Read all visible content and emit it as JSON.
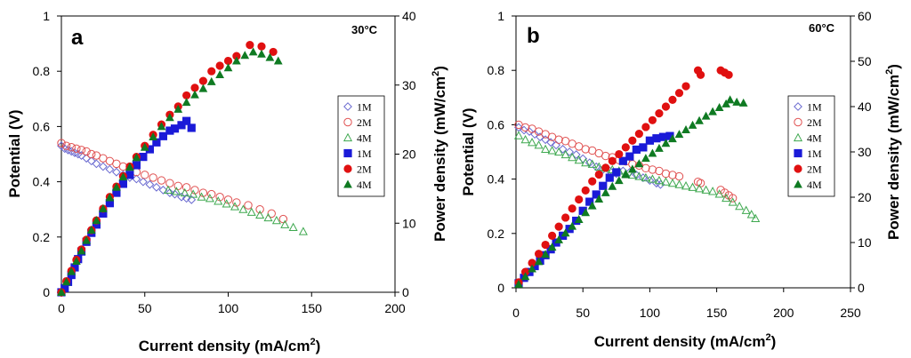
{
  "chart_data": [
    {
      "type": "scatter",
      "panel_label": "a",
      "annotation": "30°C",
      "xlabel": "Current density (mA/cm",
      "xlabel_sup": "2",
      "xlabel_end": ")",
      "ylabel": "Potential (V)",
      "y2label": "Power density (mW/cm",
      "y2label_sup": "2",
      "y2label_end": ")",
      "xlim": [
        0,
        200
      ],
      "ylim": [
        0,
        1
      ],
      "y2lim": [
        0,
        40
      ],
      "xticks": [
        "0",
        "50",
        "100",
        "150",
        "200"
      ],
      "yticks": [
        "0",
        "0.2",
        "0.4",
        "0.6",
        "0.8",
        "1"
      ],
      "y2ticks": [
        "0",
        "10",
        "20",
        "30",
        "40"
      ],
      "legend_position": "center-right",
      "series": [
        {
          "name": "1M",
          "axis": "left",
          "marker": "diamond-open",
          "color": "#6a6ad0",
          "x": [
            0,
            2,
            4,
            6,
            8,
            10,
            12,
            15,
            18,
            21,
            25,
            29,
            33,
            37,
            41,
            45,
            49,
            53,
            57,
            61,
            65,
            68,
            72,
            75,
            78
          ],
          "y": [
            0.53,
            0.52,
            0.515,
            0.51,
            0.505,
            0.5,
            0.495,
            0.485,
            0.475,
            0.465,
            0.455,
            0.445,
            0.435,
            0.425,
            0.415,
            0.41,
            0.4,
            0.39,
            0.38,
            0.37,
            0.36,
            0.355,
            0.345,
            0.34,
            0.335
          ]
        },
        {
          "name": "2M",
          "axis": "left",
          "marker": "circle-open",
          "color": "#e05050",
          "x": [
            0,
            3,
            6,
            9,
            12,
            15,
            18,
            21,
            25,
            29,
            33,
            37,
            41,
            45,
            50,
            55,
            60,
            65,
            70,
            75,
            80,
            85,
            90,
            95,
            100,
            105,
            112,
            119,
            126,
            133
          ],
          "y": [
            0.54,
            0.53,
            0.525,
            0.52,
            0.515,
            0.51,
            0.5,
            0.495,
            0.485,
            0.475,
            0.465,
            0.455,
            0.445,
            0.435,
            0.425,
            0.415,
            0.405,
            0.395,
            0.385,
            0.38,
            0.37,
            0.36,
            0.355,
            0.345,
            0.335,
            0.325,
            0.315,
            0.3,
            0.285,
            0.265
          ]
        },
        {
          "name": "4M",
          "axis": "left",
          "marker": "triangle-open",
          "color": "#3ea84f",
          "x": [
            64,
            69,
            74,
            79,
            84,
            89,
            94,
            99,
            104,
            109,
            114,
            119,
            124,
            129,
            134,
            139,
            145
          ],
          "y": [
            0.37,
            0.365,
            0.36,
            0.355,
            0.345,
            0.34,
            0.33,
            0.32,
            0.31,
            0.3,
            0.29,
            0.28,
            0.27,
            0.26,
            0.245,
            0.235,
            0.22
          ]
        },
        {
          "name": "1M",
          "axis": "right",
          "marker": "square-filled",
          "color": "#1a1ad8",
          "x": [
            0,
            2,
            4,
            6,
            8,
            10,
            12,
            15,
            18,
            21,
            25,
            29,
            33,
            37,
            41,
            45,
            49,
            53,
            57,
            61,
            65,
            68,
            72,
            75,
            78
          ],
          "y": [
            0,
            0.6,
            1.5,
            2.5,
            3.6,
            4.8,
            5.9,
            7.3,
            8.6,
            9.8,
            11.4,
            12.9,
            14.4,
            15.7,
            17.0,
            18.4,
            19.6,
            20.7,
            21.7,
            22.6,
            23.4,
            23.7,
            24.2,
            24.8,
            23.8
          ]
        },
        {
          "name": "2M",
          "axis": "right",
          "marker": "circle-filled",
          "color": "#e01010",
          "x": [
            0,
            3,
            6,
            9,
            12,
            15,
            18,
            21,
            25,
            29,
            33,
            37,
            41,
            45,
            50,
            55,
            60,
            65,
            70,
            75,
            80,
            85,
            90,
            95,
            100,
            105,
            113,
            120,
            127
          ],
          "y": [
            0,
            1.6,
            3.1,
            4.7,
            6.2,
            7.6,
            9.0,
            10.4,
            12.1,
            13.8,
            15.3,
            16.8,
            18.2,
            19.6,
            21.2,
            22.8,
            24.3,
            25.7,
            26.9,
            28.5,
            29.6,
            30.6,
            32.0,
            32.8,
            33.5,
            34.2,
            35.8,
            35.6,
            34.8
          ]
        },
        {
          "name": "4M",
          "axis": "right",
          "marker": "triangle-filled",
          "color": "#0f7a22",
          "x": [
            0,
            3,
            6,
            9,
            12,
            15,
            18,
            21,
            25,
            29,
            33,
            37,
            41,
            45,
            50,
            55,
            60,
            65,
            70,
            75,
            80,
            85,
            90,
            95,
            100,
            105,
            110,
            115,
            120,
            125,
            130
          ],
          "y": [
            0,
            1.5,
            3.0,
            4.5,
            6.0,
            7.5,
            9.0,
            10.4,
            12.1,
            13.7,
            15.2,
            16.7,
            18.1,
            19.5,
            21.0,
            22.5,
            24.0,
            25.3,
            26.5,
            27.5,
            28.6,
            29.5,
            30.5,
            31.5,
            32.5,
            33.5,
            34.3,
            34.8,
            34.5,
            34.0,
            33.5
          ]
        }
      ]
    },
    {
      "type": "scatter",
      "panel_label": "b",
      "annotation": "60°C",
      "xlabel": "Current density (mA/cm",
      "xlabel_sup": "2",
      "xlabel_end": ")",
      "ylabel": "Potential (V)",
      "y2label": "Power density (mW/cm",
      "y2label_sup": "2",
      "y2label_end": ")",
      "xlim": [
        0,
        250
      ],
      "ylim": [
        0,
        1
      ],
      "y2lim": [
        0,
        60
      ],
      "xticks": [
        "0",
        "50",
        "100",
        "150",
        "200",
        "250"
      ],
      "yticks": [
        "0",
        "0.2",
        "0.4",
        "0.6",
        "0.8",
        "1"
      ],
      "y2ticks": [
        "0",
        "10",
        "20",
        "30",
        "40",
        "50",
        "60"
      ],
      "legend_position": "center-right",
      "series": [
        {
          "name": "1M",
          "axis": "left",
          "marker": "diamond-open",
          "color": "#6a6ad0",
          "x": [
            2,
            6,
            10,
            14,
            18,
            22,
            26,
            30,
            35,
            40,
            45,
            50,
            55,
            60,
            65,
            70,
            75,
            80,
            85,
            90,
            95,
            100,
            105,
            108
          ],
          "y": [
            0.59,
            0.58,
            0.575,
            0.565,
            0.555,
            0.545,
            0.535,
            0.525,
            0.51,
            0.5,
            0.49,
            0.475,
            0.46,
            0.445,
            0.435,
            0.43,
            0.42,
            0.43,
            0.425,
            0.415,
            0.405,
            0.395,
            0.385,
            0.38
          ]
        },
        {
          "name": "2M",
          "axis": "left",
          "marker": "circle-open",
          "color": "#e05050",
          "x": [
            2,
            7,
            12,
            17,
            22,
            27,
            32,
            37,
            42,
            47,
            52,
            57,
            62,
            67,
            72,
            77,
            82,
            87,
            92,
            97,
            102,
            107,
            112,
            117,
            122,
            136,
            138,
            153,
            156,
            159,
            162
          ],
          "y": [
            0.6,
            0.59,
            0.585,
            0.575,
            0.565,
            0.555,
            0.545,
            0.54,
            0.53,
            0.52,
            0.51,
            0.505,
            0.495,
            0.485,
            0.48,
            0.47,
            0.465,
            0.455,
            0.45,
            0.44,
            0.435,
            0.43,
            0.42,
            0.415,
            0.41,
            0.39,
            0.385,
            0.36,
            0.35,
            0.34,
            0.33
          ]
        },
        {
          "name": "4M",
          "axis": "left",
          "marker": "triangle-open",
          "color": "#3ea84f",
          "x": [
            2,
            7,
            12,
            17,
            22,
            27,
            32,
            37,
            42,
            47,
            52,
            57,
            62,
            67,
            72,
            77,
            82,
            87,
            92,
            97,
            102,
            107,
            112,
            117,
            122,
            127,
            132,
            137,
            142,
            147,
            152,
            157,
            162,
            167,
            172,
            176,
            179
          ],
          "y": [
            0.56,
            0.545,
            0.535,
            0.525,
            0.51,
            0.505,
            0.5,
            0.49,
            0.48,
            0.47,
            0.46,
            0.455,
            0.445,
            0.44,
            0.435,
            0.43,
            0.42,
            0.415,
            0.41,
            0.405,
            0.4,
            0.395,
            0.39,
            0.385,
            0.38,
            0.375,
            0.37,
            0.365,
            0.36,
            0.355,
            0.345,
            0.33,
            0.315,
            0.3,
            0.285,
            0.27,
            0.255
          ]
        },
        {
          "name": "1M",
          "axis": "right",
          "marker": "square-filled",
          "color": "#1a1ad8",
          "x": [
            2,
            6,
            10,
            14,
            18,
            22,
            26,
            30,
            35,
            40,
            45,
            50,
            55,
            60,
            65,
            70,
            75,
            80,
            85,
            90,
            95,
            100,
            105,
            110,
            115
          ],
          "y": [
            1,
            2.2,
            3.5,
            4.8,
            6.0,
            7.2,
            8.5,
            10.0,
            11.5,
            13.0,
            14.8,
            17.0,
            19.0,
            20.6,
            22.5,
            24.3,
            25.5,
            28.0,
            29.0,
            30.5,
            31.0,
            32.5,
            33.0,
            33.3,
            33.5
          ]
        },
        {
          "name": "2M",
          "axis": "right",
          "marker": "circle-filled",
          "color": "#e01010",
          "x": [
            2,
            7,
            12,
            17,
            22,
            27,
            32,
            37,
            42,
            47,
            52,
            57,
            62,
            67,
            72,
            77,
            82,
            87,
            92,
            97,
            102,
            107,
            112,
            117,
            122,
            127,
            136,
            138,
            153,
            156,
            159
          ],
          "y": [
            1.2,
            3.5,
            5.5,
            7.5,
            9.5,
            11.5,
            13.5,
            15.5,
            17.5,
            19.5,
            21.5,
            23.5,
            25.0,
            26.5,
            28.0,
            29.5,
            31.0,
            32.5,
            34.0,
            35.5,
            37.0,
            38.5,
            40.0,
            41.5,
            43.0,
            44.5,
            48.0,
            47.0,
            48.0,
            47.5,
            47.0
          ]
        },
        {
          "name": "4M",
          "axis": "right",
          "marker": "triangle-filled",
          "color": "#0f7a22",
          "x": [
            2,
            7,
            12,
            17,
            22,
            27,
            32,
            37,
            42,
            47,
            52,
            57,
            62,
            67,
            72,
            77,
            82,
            87,
            92,
            97,
            102,
            107,
            112,
            117,
            122,
            127,
            132,
            137,
            142,
            147,
            152,
            157,
            160,
            165,
            170
          ],
          "y": [
            0.8,
            2.5,
            4.2,
            5.8,
            7.4,
            9.0,
            10.6,
            12.1,
            13.6,
            15.1,
            16.6,
            18.1,
            19.6,
            21.0,
            22.4,
            23.7,
            25.0,
            26.2,
            27.4,
            28.6,
            29.7,
            30.8,
            31.9,
            32.9,
            33.9,
            34.9,
            35.9,
            36.9,
            37.9,
            38.9,
            39.8,
            40.6,
            41.5,
            41.0,
            40.8
          ]
        }
      ]
    }
  ]
}
